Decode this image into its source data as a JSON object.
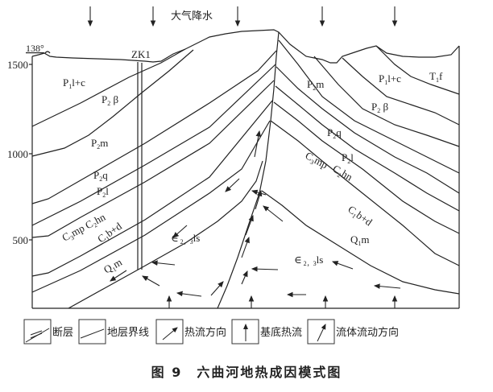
{
  "precipitation_label": "大气降水",
  "dip_label": "138°",
  "borehole_label": "ZK1",
  "y_ticks": [
    "1500",
    "1000",
    "500"
  ],
  "strata_left": [
    {
      "main": "P",
      "sub": "1",
      "rest": "l+c"
    },
    {
      "main": "P",
      "sub": "2",
      "rest": " β"
    },
    {
      "main": "P",
      "sub": "2",
      "rest": "m"
    },
    {
      "main": "P",
      "sub": "2",
      "rest": "q"
    },
    {
      "main": "P",
      "sub": "2",
      "rest": "l"
    },
    {
      "main": "C",
      "sub": "3",
      "rest": "mp  C₂hn"
    },
    {
      "main": "C",
      "sub": "1",
      "rest": "b+d"
    },
    {
      "main": "Q",
      "sub": "1",
      "rest": "m"
    },
    {
      "main": "∈",
      "sub": " 2，3",
      "rest": "ls"
    }
  ],
  "strata_right": [
    {
      "main": "P",
      "sub": "2",
      "rest": "m"
    },
    {
      "main": "P",
      "sub": "1",
      "rest": "l+c"
    },
    {
      "main": "T",
      "sub": "1",
      "rest": "f"
    },
    {
      "main": "P",
      "sub": "2",
      "rest": " β"
    },
    {
      "main": "P",
      "sub": "2",
      "rest": "q"
    },
    {
      "main": "P",
      "sub": "2",
      "rest": "l"
    },
    {
      "main": "C",
      "sub": "3",
      "rest": "mp"
    },
    {
      "main": "C",
      "sub": "2",
      "rest": "hn"
    },
    {
      "main": "C",
      "sub": "1",
      "rest": "b+d"
    },
    {
      "main": "Q",
      "sub": "1",
      "rest": "m"
    },
    {
      "main": "∈",
      "sub": " 2，3",
      "rest": "ls"
    }
  ],
  "legend": [
    {
      "icon": "fault-icon",
      "label": "断层"
    },
    {
      "icon": "stratum-boundary-icon",
      "label": "地层界线"
    },
    {
      "icon": "heat-flow-direction-icon",
      "label": "热流方向"
    },
    {
      "icon": "basement-heat-flow-icon",
      "label": "基底热流"
    },
    {
      "icon": "fluid-flow-direction-icon",
      "label": "流体流动方向"
    }
  ],
  "caption": "图 9　六曲河地热成因模式图"
}
